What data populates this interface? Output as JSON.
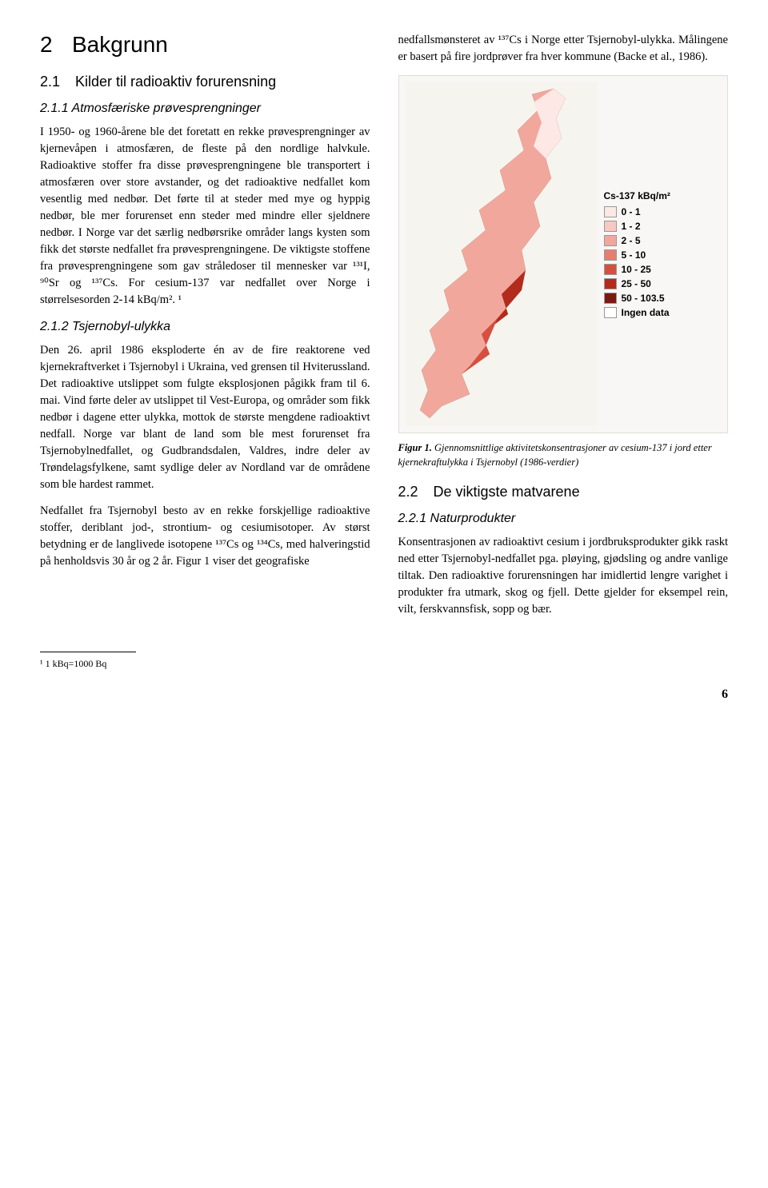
{
  "left": {
    "h1_num": "2",
    "h1_title": "Bakgrunn",
    "h2_1_num": "2.1",
    "h2_1_title": "Kilder til radioaktiv forurensning",
    "h3_1": "2.1.1 Atmosfæriske prøvesprengninger",
    "p1": "I 1950- og 1960-årene ble det foretatt en rekke prøvesprengninger av kjernevåpen i atmosfæren, de fleste på den nordlige halvkule. Radioaktive stoffer fra disse prøve­sprengningene ble transportert i atmosfæren over store avstander, og det radioaktive ned­fallet kom vesentlig med nedbør. Det førte til at steder med mye og hyppig nedbør, ble mer forurenset enn steder med mindre eller sjeldnere nedbør. I Norge var det særlig nedbørsrike områder langs kysten som fikk det største nedfallet fra prøvesprengningene. De viktigste stoffene fra prøvesprengningene som gav stråledoser til mennesker var ¹³¹I, ⁹⁰Sr og ¹³⁷Cs. For cesium-137 var nedfallet over Norge i størrelsesorden 2-14 kBq/m². ¹",
    "h3_2": "2.1.2 Tsjernobyl-ulykka",
    "p2": "Den 26. april 1986 eksploderte én av de fire reaktorene ved kjernekraftverket i Tsjernobyl i Ukraina, ved grensen til Hviterussland. Det radioaktive utslippet som fulgte eksplosjonen pågikk fram til 6. mai. Vind førte deler av utslippet til Vest-Europa, og områder som fikk nedbør i dagene etter ulykka, mottok de største mengdene radioaktivt nedfall. Norge var blant de land som ble mest forurenset fra Tsjernobyl­nedfallet, og Gudbrandsdalen, Valdres, indre deler av Trøndelagsfylkene, samt sydlige deler av Nordland var de områdene som ble hardest rammet.",
    "p3": "Nedfallet fra Tsjernobyl besto av en rekke forskjellige radioaktive stoffer, deriblant jod-, strontium- og cesiumisotoper. Av størst betydning er de langlivede isotopene ¹³⁷Cs og ¹³⁴Cs, med halveringstid på henholdsvis 30 år og 2 år. Figur 1 viser det geografiske",
    "footnote": "¹ 1 kBq=1000 Bq"
  },
  "right": {
    "p_top": "nedfallsmønsteret av ¹³⁷Cs i Norge etter Tsjernobyl-ulykka. Målingene er basert på fire jordprøver fra hver kommune (Backe et al., 1986).",
    "legend_title": "Cs-137 kBq/m²",
    "legend": [
      {
        "color": "#fde8e6",
        "label": "0 - 1"
      },
      {
        "color": "#f8c9c3",
        "label": "1 - 2"
      },
      {
        "color": "#f2a79d",
        "label": "2 - 5"
      },
      {
        "color": "#e87d6f",
        "label": "5 - 10"
      },
      {
        "color": "#d64f3f",
        "label": "10 - 25"
      },
      {
        "color": "#b32b1c",
        "label": "25 - 50"
      },
      {
        "color": "#7a1a10",
        "label": "50 - 103.5"
      },
      {
        "color": "#ffffff",
        "label": "Ingen data"
      }
    ],
    "fig_label": "Figur 1.",
    "fig_text": "Gjennomsnittlige aktivitetskonsentrasjoner av cesium-137 i jord etter kjernekraftulykka i Tsjernobyl (1986-verdier)",
    "h2_2_num": "2.2",
    "h2_2_title": "De viktigste matvarene",
    "h3_3": "2.2.1 Naturprodukter",
    "p_bottom": "Konsentrasjonen av radioaktivt cesium i jordbruksprodukter gikk raskt ned etter Tsjernobyl-nedfallet pga. pløying, gjødsling og andre vanlige tiltak. Den radioaktive forurensningen har imidlertid lengre varighet i produkter fra utmark, skog og fjell. Dette gjelder for eksempel rein, vilt, ferskvannsfisk, sopp og bær."
  },
  "page_number": "6"
}
